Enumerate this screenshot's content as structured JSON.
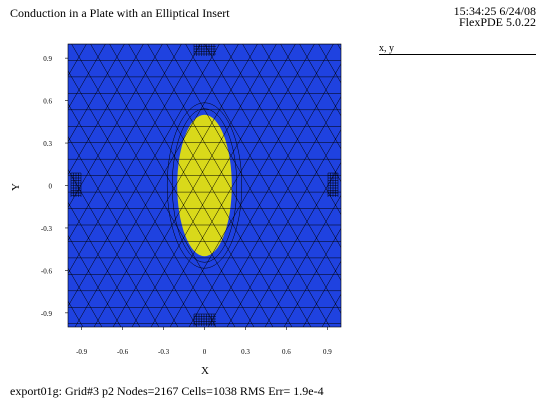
{
  "header": {
    "title": "Conduction in a Plate with an Elliptical Insert",
    "time": "15:34:25 6/24/08",
    "version": "FlexPDE 5.0.22"
  },
  "legend": {
    "label": "x, y"
  },
  "plot": {
    "xlabel": "X",
    "ylabel": "Y",
    "xlim": [
      -1,
      1
    ],
    "ylim": [
      -1,
      1
    ],
    "x_ticks": [
      "-0.9",
      "-0.6",
      "-0.3",
      "0",
      "0.3",
      "0.6",
      "0.9"
    ],
    "y_ticks": [
      "0.9",
      "0.6",
      "0.3",
      "0",
      "-0.3",
      "-0.6",
      "-0.9"
    ],
    "plate_color": "#1f42e0",
    "insert_color": "#d9d91a",
    "mesh_color": "#000000",
    "insert_ellipse": {
      "cx": 0,
      "cy": 0,
      "rx": 0.2,
      "ry": 0.5
    }
  },
  "footer": {
    "text": "export01g:  Grid#3  p2  Nodes=2167 Cells=1038 RMS Err= 1.9e-4"
  }
}
